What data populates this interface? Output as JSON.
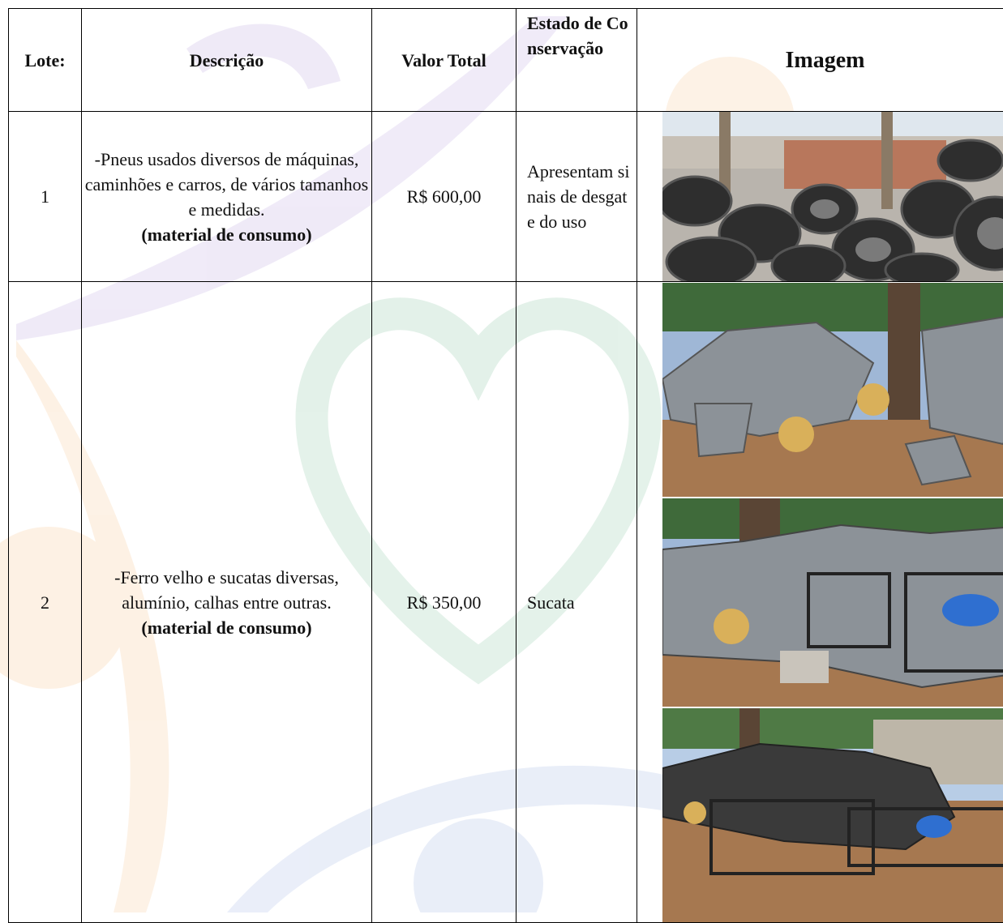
{
  "table": {
    "headers": [
      "Lote:",
      "Descrição",
      "Valor Total",
      "Estado de Conservação",
      "Imagem"
    ],
    "rows": [
      {
        "lote": "1",
        "description": "-Pneus usados diversos de máquinas, caminhões e carros, de vários tamanhos e medidas.",
        "note": "(material de consumo)",
        "value": "R$ 600,00",
        "state": "Apresentam sinais de desgate do uso"
      },
      {
        "lote": "2",
        "description": "-Ferro velho e sucatas diversas, alumínio, calhas entre outras.",
        "note": "(material de consumo)",
        "value": "R$ 350,00",
        "state": "Sucata"
      }
    ]
  }
}
